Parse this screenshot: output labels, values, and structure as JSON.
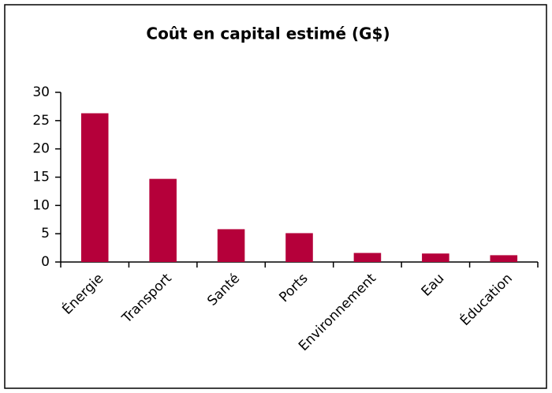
{
  "chart_data": {
    "type": "bar",
    "title": "Coût en capital estimé (G$)",
    "categories": [
      "Énergie",
      "Transport",
      "Santé",
      "Ports",
      "Environnement",
      "Eau",
      "Éducation"
    ],
    "values": [
      26.3,
      14.7,
      5.8,
      5.1,
      1.6,
      1.5,
      1.2
    ],
    "color": "#b5003a",
    "ylim": [
      0,
      30
    ],
    "yticks": [
      0,
      5,
      10,
      15,
      20,
      25,
      30
    ],
    "grid": false
  }
}
